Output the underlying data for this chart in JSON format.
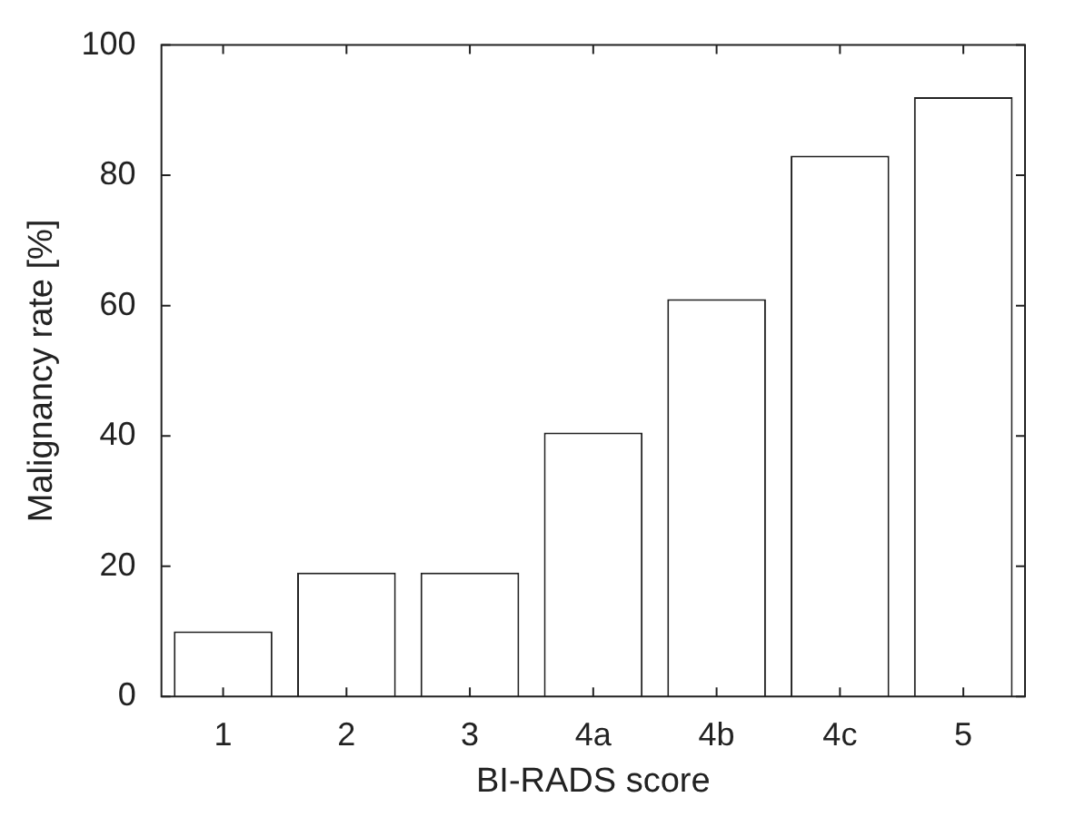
{
  "chart_data": {
    "type": "bar",
    "xlabel": "BI-RADS score",
    "ylabel": "Malignancy rate [%]",
    "categories": [
      "1",
      "2",
      "3",
      "4a",
      "4b",
      "4c",
      "5"
    ],
    "values": [
      10,
      19,
      19,
      40.5,
      61,
      83,
      92
    ],
    "color": "#ffffff",
    "ylim": [
      0,
      100
    ],
    "yticks": [
      0,
      20,
      40,
      60,
      80,
      100
    ]
  }
}
